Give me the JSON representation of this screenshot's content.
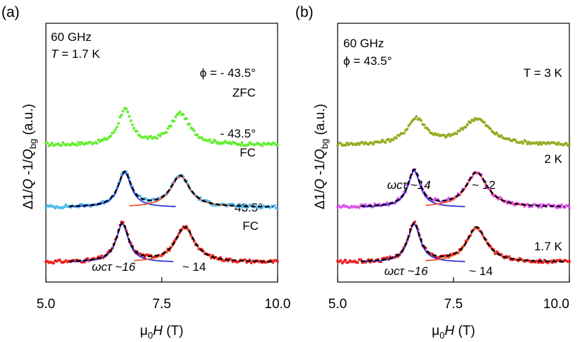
{
  "chart_data": [
    {
      "panel": "(a)",
      "type": "scatter",
      "annotations": {
        "freq": "60 GHz",
        "temp_sym": "T",
        "temp_rest": " = 1.7 K",
        "fit1": "ωcτ ~16",
        "fit2": "~ 14"
      },
      "xlabel": "μ0H (T)",
      "ylabel": "Δ1/Q -1/Qbg (a.u.)",
      "xlim": [
        5.0,
        10.0
      ],
      "xticks": [
        "5.0",
        "7.5",
        "10.0"
      ],
      "traces": [
        {
          "name": "ϕ = - 43.5°",
          "sub": "ZFC",
          "color": "#66ee33",
          "offset": 6.4,
          "peaks": [
            [
              6.7,
              0.34,
              1.9
            ],
            [
              7.9,
              0.5,
              1.7
            ]
          ],
          "range": [
            5.0,
            10.0
          ],
          "fit": false
        },
        {
          "name": "- 43.5°",
          "sub": "FC",
          "color": "#55bbee",
          "offset": 3.0,
          "peaks": [
            [
              6.7,
              0.34,
              1.9
            ],
            [
              7.9,
              0.5,
              1.7
            ]
          ],
          "range": [
            5.0,
            10.0
          ],
          "fit": true
        },
        {
          "name": "43.5°",
          "sub": "FC",
          "color": "#ee2222",
          "offset": 0.0,
          "peaks": [
            [
              6.65,
              0.32,
              2.1
            ],
            [
              8.0,
              0.5,
              1.9
            ]
          ],
          "range": [
            5.0,
            10.0
          ],
          "fit": true
        }
      ]
    },
    {
      "panel": "(b)",
      "type": "scatter",
      "annotations": {
        "freq": "60 GHz",
        "angle": "ϕ = 43.5°",
        "fit1": "ωcτ ~14",
        "fit2": "~ 12",
        "fit3": "ωcτ ~16",
        "fit4": "~ 14"
      },
      "xlabel": "μ0H (T)",
      "ylabel": "Δ1/Q -1/Qbg (a.u.)",
      "xlim": [
        5.0,
        10.0
      ],
      "xticks": [
        "5.0",
        "7.5",
        "10.0"
      ],
      "traces": [
        {
          "name": "T = 3 K",
          "color": "#99aa22",
          "offset": 6.4,
          "peaks": [
            [
              6.7,
              0.5,
              1.4
            ],
            [
              8.0,
              0.7,
              1.4
            ]
          ],
          "range": [
            5.0,
            10.0
          ],
          "fit": false
        },
        {
          "name": "2 K",
          "color": "#dd55ee",
          "offset": 3.0,
          "peaks": [
            [
              6.65,
              0.32,
              2.0
            ],
            [
              8.0,
              0.55,
              1.9
            ]
          ],
          "range": [
            5.0,
            10.0
          ],
          "fit": true
        },
        {
          "name": "1.7 K",
          "color": "#ee2222",
          "offset": 0.0,
          "peaks": [
            [
              6.65,
              0.32,
              2.1
            ],
            [
              8.0,
              0.5,
              1.9
            ]
          ],
          "range": [
            5.0,
            10.0
          ],
          "fit": true
        }
      ]
    }
  ]
}
